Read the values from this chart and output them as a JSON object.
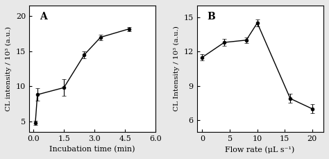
{
  "panel_A": {
    "x": [
      0.1,
      0.2,
      1.5,
      2.5,
      3.3,
      4.7
    ],
    "y": [
      4.8,
      8.8,
      9.8,
      14.5,
      17.0,
      18.2
    ],
    "yerr": [
      0.3,
      0.9,
      1.2,
      0.5,
      0.4,
      0.3
    ],
    "xlabel": "Incubation time (min)",
    "ylabel": "CL intensity / 10³ (a.u.)",
    "label": "A",
    "xlim": [
      -0.2,
      6.0
    ],
    "ylim": [
      3.5,
      21.5
    ],
    "xticks": [
      0.0,
      1.5,
      3.0,
      4.5,
      6.0
    ],
    "yticks": [
      5,
      10,
      15,
      20
    ]
  },
  "panel_B": {
    "x": [
      0,
      4,
      8,
      10,
      16,
      20
    ],
    "y": [
      11.5,
      12.8,
      13.0,
      14.5,
      7.9,
      7.0
    ],
    "yerr": [
      0.25,
      0.3,
      0.25,
      0.3,
      0.4,
      0.4
    ],
    "xlabel": "Flow rate (μL s⁻¹)",
    "ylabel": "CL Intensity / 10³ (a.u.)",
    "label": "B",
    "xlim": [
      -1,
      22
    ],
    "ylim": [
      5.0,
      16.0
    ],
    "xticks": [
      0,
      5,
      10,
      15,
      20
    ],
    "yticks": [
      6,
      9,
      12,
      15
    ]
  },
  "line_color": "#000000",
  "marker": "o",
  "markersize": 3.5,
  "capsize": 2.5,
  "linewidth": 1.0,
  "bg_color": "#e8e8e8",
  "plot_bg": "#ffffff",
  "label_fontsize": 8,
  "tick_fontsize": 8,
  "panel_label_fontsize": 10
}
